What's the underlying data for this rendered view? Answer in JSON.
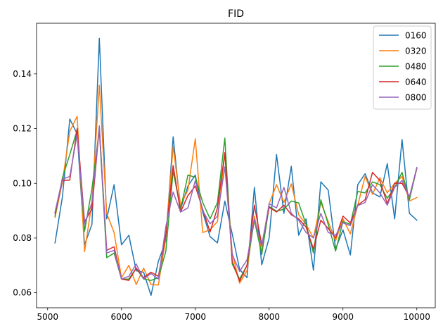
{
  "chart_data": {
    "type": "line",
    "title": "FID",
    "xlabel": "",
    "ylabel": "",
    "xlim": [
      4850,
      10250
    ],
    "ylim": [
      0.0545,
      0.1585
    ],
    "xticks": [
      5000,
      6000,
      7000,
      8000,
      9000,
      10000
    ],
    "yticks": [
      0.06,
      0.08,
      0.1,
      0.12,
      0.14
    ],
    "ytick_labels": [
      "0.06",
      "0.08",
      "0.10",
      "0.12",
      "0.14"
    ],
    "grid": false,
    "legend_position": "top-right",
    "x": [
      5100,
      5200,
      5300,
      5400,
      5500,
      5600,
      5700,
      5800,
      5900,
      6000,
      6100,
      6200,
      6300,
      6400,
      6500,
      6600,
      6700,
      6800,
      6900,
      7000,
      7100,
      7200,
      7300,
      7400,
      7500,
      7600,
      7700,
      7800,
      7900,
      8000,
      8100,
      8200,
      8300,
      8400,
      8500,
      8600,
      8700,
      8800,
      8900,
      9000,
      9100,
      9200,
      9300,
      9400,
      9500,
      9600,
      9700,
      9800,
      9900,
      10000
    ],
    "series": [
      {
        "name": "0160",
        "color": "#1f77b4",
        "values": [
          0.0782,
          0.095,
          0.1235,
          0.118,
          0.0775,
          0.085,
          0.153,
          0.087,
          0.0995,
          0.0775,
          0.081,
          0.068,
          0.0675,
          0.059,
          0.0715,
          0.079,
          0.117,
          0.0905,
          0.099,
          0.103,
          0.0895,
          0.0805,
          0.0782,
          0.0935,
          0.0815,
          0.0685,
          0.0655,
          0.0985,
          0.0702,
          0.08,
          0.1105,
          0.089,
          0.1062,
          0.081,
          0.087,
          0.0682,
          0.1005,
          0.0975,
          0.076,
          0.083,
          0.0738,
          0.0995,
          0.1035,
          0.0965,
          0.095,
          0.1072,
          0.087,
          0.116,
          0.089,
          0.0865
        ]
      },
      {
        "name": "0320",
        "color": "#ff7f0e",
        "values": [
          0.0875,
          0.1005,
          0.119,
          0.1245,
          0.075,
          0.093,
          0.1358,
          0.089,
          0.082,
          0.0655,
          0.07,
          0.063,
          0.069,
          0.063,
          0.0628,
          0.08,
          0.1135,
          0.092,
          0.0975,
          0.1163,
          0.082,
          0.083,
          0.086,
          0.111,
          0.0745,
          0.0635,
          0.068,
          0.088,
          0.075,
          0.0925,
          0.0995,
          0.093,
          0.0998,
          0.0885,
          0.085,
          0.08,
          0.093,
          0.086,
          0.079,
          0.087,
          0.0815,
          0.092,
          0.1025,
          0.096,
          0.102,
          0.0965,
          0.1,
          0.1025,
          0.0935,
          0.0948
        ]
      },
      {
        "name": "0480",
        "color": "#2ca02c",
        "values": [
          0.088,
          0.102,
          0.1105,
          0.1195,
          0.0825,
          0.098,
          0.1195,
          0.0728,
          0.0745,
          0.065,
          0.065,
          0.069,
          0.065,
          0.0645,
          0.0655,
          0.075,
          0.1045,
          0.0905,
          0.103,
          0.1022,
          0.093,
          0.087,
          0.093,
          0.1165,
          0.0705,
          0.065,
          0.07,
          0.0865,
          0.074,
          0.0915,
          0.0898,
          0.0905,
          0.0935,
          0.0928,
          0.085,
          0.0745,
          0.094,
          0.085,
          0.0752,
          0.086,
          0.085,
          0.097,
          0.0965,
          0.1005,
          0.0995,
          0.0945,
          0.0985,
          0.104,
          0.094,
          0.1055
        ]
      },
      {
        "name": "0640",
        "color": "#d62728",
        "values": [
          0.089,
          0.101,
          0.1012,
          0.12,
          0.086,
          0.0905,
          0.1205,
          0.0755,
          0.0768,
          0.065,
          0.0645,
          0.069,
          0.0655,
          0.0675,
          0.066,
          0.081,
          0.1065,
          0.0895,
          0.0955,
          0.099,
          0.0905,
          0.0822,
          0.091,
          0.1112,
          0.0715,
          0.0642,
          0.07,
          0.092,
          0.0775,
          0.0912,
          0.0895,
          0.092,
          0.0885,
          0.087,
          0.084,
          0.076,
          0.0865,
          0.0835,
          0.08,
          0.088,
          0.0855,
          0.092,
          0.094,
          0.104,
          0.101,
          0.0925,
          0.1,
          0.1,
          0.095,
          0.1055
        ]
      },
      {
        "name": "0800",
        "color": "#9467bd",
        "values": [
          0.0895,
          0.1015,
          0.1025,
          0.118,
          0.085,
          0.093,
          0.121,
          0.0745,
          0.0755,
          0.065,
          0.066,
          0.0705,
          0.065,
          0.067,
          0.065,
          0.084,
          0.0968,
          0.0895,
          0.091,
          0.101,
          0.09,
          0.0852,
          0.088,
          0.106,
          0.074,
          0.0678,
          0.072,
          0.0868,
          0.077,
          0.0925,
          0.091,
          0.0985,
          0.089,
          0.0865,
          0.082,
          0.08,
          0.089,
          0.082,
          0.081,
          0.0855,
          0.0845,
          0.0918,
          0.093,
          0.0995,
          0.0965,
          0.092,
          0.0985,
          0.101,
          0.095,
          0.1058
        ]
      }
    ]
  }
}
